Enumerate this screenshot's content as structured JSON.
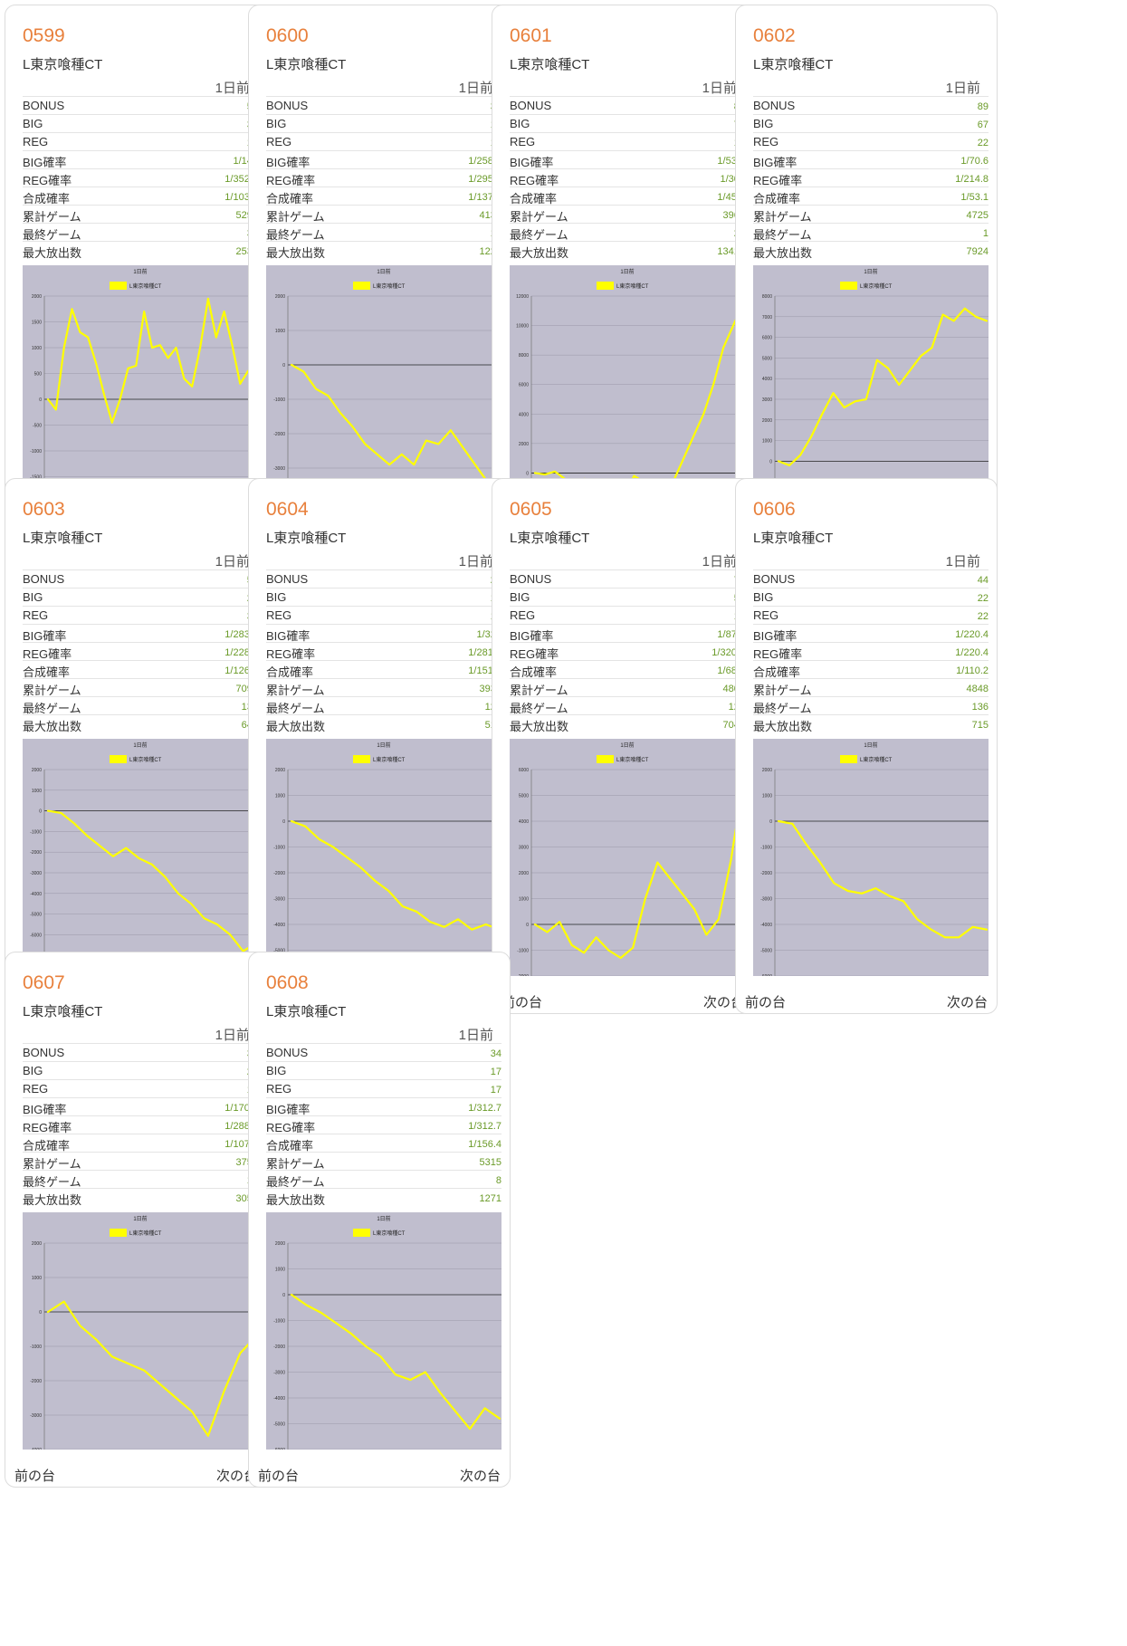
{
  "common": {
    "model": "L東京喰種CT",
    "day_label": "1日前",
    "prev_label": "前の台",
    "next_label": "次の台",
    "stat_labels": [
      "BONUS",
      "BIG",
      "REG",
      "BIG確率",
      "REG確率",
      "合成確率",
      "累計ゲーム",
      "最終ゲーム",
      "最大放出数"
    ],
    "chart_title": "1日前",
    "legend_label": "L東京喰種CT",
    "line_color": "#ffff00",
    "plot_bg": "#c0bece"
  },
  "machines": [
    {
      "id": "0599",
      "stats": [
        "51",
        "36",
        "15",
        "1/147",
        "1/352.8",
        "1/103.8",
        "5292",
        "36",
        "2535"
      ],
      "chart_data": {
        "type": "line",
        "ylim": [
          -2000,
          2000
        ],
        "yticks": [
          2000,
          1500,
          1000,
          500,
          0,
          -500,
          -1000,
          -1500,
          -2000
        ],
        "y": [
          0,
          -200,
          1000,
          1750,
          1300,
          1200,
          700,
          100,
          -450,
          0,
          600,
          650,
          1700,
          1000,
          1050,
          800,
          1000,
          400,
          250,
          1000,
          1950,
          1200,
          1700,
          1050,
          300,
          550,
          500
        ]
      }
    },
    {
      "id": "0600",
      "stats": [
        "30",
        "16",
        "14",
        "1/258.2",
        "1/295.1",
        "1/137.7",
        "4131",
        "19",
        "1225"
      ],
      "chart_data": {
        "type": "line",
        "ylim": [
          -4000,
          2000
        ],
        "yticks": [
          2000,
          1000,
          0,
          -1000,
          -2000,
          -3000,
          -4000
        ],
        "y": [
          0,
          -200,
          -700,
          -900,
          -1400,
          -1800,
          -2300,
          -2600,
          -2900,
          -2600,
          -2900,
          -2200,
          -2300,
          -1900,
          -2400,
          -2900,
          -3400,
          -3200
        ]
      }
    },
    {
      "id": "0601",
      "stats": [
        "87",
        "74",
        "13",
        "1/53.6",
        "1/305",
        "1/45.6",
        "3965",
        "22",
        "13413"
      ],
      "chart_data": {
        "type": "line",
        "ylim": [
          -2000,
          12000
        ],
        "yticks": [
          12000,
          10000,
          8000,
          6000,
          4000,
          2000,
          0,
          -2000
        ],
        "y": [
          0,
          -100,
          100,
          -400,
          -600,
          -400,
          -800,
          -1000,
          -1700,
          -1400,
          -200,
          -600,
          -1000,
          -1600,
          -500,
          1000,
          2500,
          4000,
          6000,
          8500,
          10000,
          11500
        ]
      }
    },
    {
      "id": "0602",
      "stats": [
        "89",
        "67",
        "22",
        "1/70.6",
        "1/214.8",
        "1/53.1",
        "4725",
        "1",
        "7924"
      ],
      "chart_data": {
        "type": "line",
        "ylim": [
          -2000,
          8000
        ],
        "yticks": [
          8000,
          7000,
          6000,
          5000,
          4000,
          3000,
          2000,
          1000,
          0,
          -1000,
          -2000
        ],
        "y": [
          0,
          -200,
          300,
          1200,
          2300,
          3300,
          2600,
          2900,
          3000,
          4900,
          4500,
          3700,
          4400,
          5100,
          5500,
          7100,
          6800,
          7400,
          7000,
          6800
        ]
      }
    },
    {
      "id": "0603",
      "stats": [
        "56",
        "25",
        "31",
        "1/283.6",
        "1/228.8",
        "1/126.7",
        "7090",
        "136",
        "649"
      ],
      "chart_data": {
        "type": "line",
        "ylim": [
          -8000,
          2000
        ],
        "yticks": [
          2000,
          1000,
          0,
          -1000,
          -2000,
          -3000,
          -4000,
          -5000,
          -6000,
          -7000,
          -8000
        ],
        "y": [
          0,
          -100,
          -600,
          -1200,
          -1700,
          -2200,
          -1800,
          -2300,
          -2600,
          -3200,
          -4000,
          -4500,
          -5200,
          -5500,
          -6000,
          -6800,
          -6400
        ]
      }
    },
    {
      "id": "0604",
      "stats": [
        "26",
        "12",
        "14",
        "1/328",
        "1/281.1",
        "1/151.4",
        "3935",
        "123",
        "518"
      ],
      "chart_data": {
        "type": "line",
        "ylim": [
          -6000,
          2000
        ],
        "yticks": [
          2000,
          1000,
          0,
          -1000,
          -2000,
          -3000,
          -4000,
          -5000,
          -6000
        ],
        "y": [
          0,
          -200,
          -700,
          -1000,
          -1400,
          -1800,
          -2300,
          -2700,
          -3300,
          -3500,
          -3900,
          -4100,
          -3800,
          -4200,
          -4000,
          -4200
        ]
      }
    },
    {
      "id": "0605",
      "stats": [
        "70",
        "55",
        "15",
        "1/87.5",
        "1/320.6",
        "1/68.7",
        "4809",
        "122",
        "7041"
      ],
      "chart_data": {
        "type": "line",
        "ylim": [
          -2000,
          6000
        ],
        "yticks": [
          6000,
          5000,
          4000,
          3000,
          2000,
          1000,
          0,
          -1000,
          -2000
        ],
        "y": [
          0,
          -300,
          100,
          -800,
          -1100,
          -500,
          -1000,
          -1300,
          -900,
          1000,
          2400,
          1800,
          1200,
          600,
          -400,
          200,
          2500,
          5500
        ]
      }
    },
    {
      "id": "0606",
      "stats": [
        "44",
        "22",
        "22",
        "1/220.4",
        "1/220.4",
        "1/110.2",
        "4848",
        "136",
        "715"
      ],
      "chart_data": {
        "type": "line",
        "ylim": [
          -6000,
          2000
        ],
        "yticks": [
          2000,
          1000,
          0,
          -1000,
          -2000,
          -3000,
          -4000,
          -5000,
          -6000
        ],
        "y": [
          0,
          -100,
          -900,
          -1600,
          -2400,
          -2700,
          -2800,
          -2600,
          -2900,
          -3100,
          -3800,
          -4200,
          -4500,
          -4500,
          -4100,
          -4200
        ]
      }
    },
    {
      "id": "0607",
      "stats": [
        "35",
        "22",
        "13",
        "1/170.5",
        "1/288.5",
        "1/107.2",
        "3750",
        "19",
        "3050"
      ],
      "chart_data": {
        "type": "line",
        "ylim": [
          -4000,
          2000
        ],
        "yticks": [
          2000,
          1000,
          0,
          -1000,
          -2000,
          -3000,
          -4000
        ],
        "y": [
          0,
          300,
          -400,
          -800,
          -1300,
          -1500,
          -1700,
          -2100,
          -2500,
          -2900,
          -3600,
          -2300,
          -1200,
          -700
        ]
      }
    },
    {
      "id": "0608",
      "stats": [
        "34",
        "17",
        "17",
        "1/312.7",
        "1/312.7",
        "1/156.4",
        "5315",
        "8",
        "1271"
      ],
      "chart_data": {
        "type": "line",
        "ylim": [
          -6000,
          2000
        ],
        "yticks": [
          2000,
          1000,
          0,
          -1000,
          -2000,
          -3000,
          -4000,
          -5000,
          -6000
        ],
        "y": [
          0,
          -400,
          -700,
          -1100,
          -1500,
          -2000,
          -2400,
          -3100,
          -3300,
          -3000,
          -3800,
          -4500,
          -5200,
          -4400,
          -4800
        ]
      }
    }
  ]
}
